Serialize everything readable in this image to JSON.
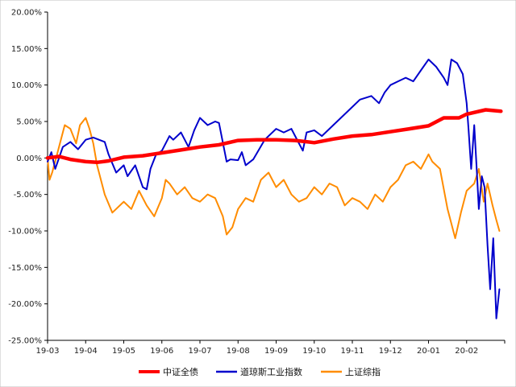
{
  "chart_data": {
    "type": "line",
    "title": "",
    "xlabel": "",
    "ylabel": "",
    "ylim": [
      -25,
      20
    ],
    "y_ticks": [
      "20.00%",
      "15.00%",
      "10.00%",
      "5.00%",
      "0.00%",
      "-5.00%",
      "-10.00%",
      "-15.00%",
      "-20.00%",
      "-25.00%"
    ],
    "y_tick_values": [
      20,
      15,
      10,
      5,
      0,
      -5,
      -10,
      -15,
      -20,
      -25
    ],
    "x_ticks": [
      "19-03",
      "19-04",
      "19-05",
      "19-06",
      "19-07",
      "19-08",
      "19-09",
      "19-10",
      "19-11",
      "19-12",
      "20-01",
      "20-02"
    ],
    "x_domain": [
      "19-03",
      "20-02 end"
    ],
    "grid": false,
    "legend_position": "bottom",
    "series": [
      {
        "name": "中证全债",
        "color": "#ff0000",
        "points": [
          [
            "19-03",
            0.0
          ],
          [
            "19-03.3",
            0.2
          ],
          [
            "19-03.6",
            -0.2
          ],
          [
            "19-04",
            -0.5
          ],
          [
            "19-04.3",
            -0.6
          ],
          [
            "19-04.6",
            -0.4
          ],
          [
            "19-05",
            0.1
          ],
          [
            "19-05.5",
            0.3
          ],
          [
            "19-06",
            0.7
          ],
          [
            "19-06.5",
            1.1
          ],
          [
            "19-07",
            1.5
          ],
          [
            "19-07.5",
            1.8
          ],
          [
            "19-08",
            2.4
          ],
          [
            "19-08.5",
            2.5
          ],
          [
            "19-09",
            2.5
          ],
          [
            "19-09.5",
            2.4
          ],
          [
            "19-10",
            2.1
          ],
          [
            "19-10.5",
            2.6
          ],
          [
            "19-11",
            3.0
          ],
          [
            "19-11.5",
            3.2
          ],
          [
            "19-12",
            3.6
          ],
          [
            "19-12.5",
            4.0
          ],
          [
            "20-01",
            4.4
          ],
          [
            "20-01.4",
            5.5
          ],
          [
            "20-01.8",
            5.5
          ],
          [
            "20-02",
            6.0
          ],
          [
            "20-02.5",
            6.6
          ],
          [
            "20-02.9",
            6.4
          ]
        ]
      },
      {
        "name": "道琼斯工业指数",
        "color": "#0000cc",
        "points": [
          [
            "19-03",
            -0.5
          ],
          [
            "19-03.1",
            0.8
          ],
          [
            "19-03.2",
            -1.5
          ],
          [
            "19-03.4",
            1.5
          ],
          [
            "19-03.6",
            2.2
          ],
          [
            "19-03.8",
            1.2
          ],
          [
            "19-04",
            2.5
          ],
          [
            "19-04.2",
            2.8
          ],
          [
            "19-04.5",
            2.2
          ],
          [
            "19-04.6",
            0.5
          ],
          [
            "19-04.8",
            -2.0
          ],
          [
            "19-05",
            -1.0
          ],
          [
            "19-05.1",
            -2.5
          ],
          [
            "19-05.3",
            -1.0
          ],
          [
            "19-05.5",
            -4.0
          ],
          [
            "19-05.6",
            -4.3
          ],
          [
            "19-05.7",
            -1.5
          ],
          [
            "19-05.85",
            0.5
          ],
          [
            "19-06",
            1.0
          ],
          [
            "19-06.2",
            3.0
          ],
          [
            "19-06.3",
            2.5
          ],
          [
            "19-06.5",
            3.5
          ],
          [
            "19-06.7",
            1.5
          ],
          [
            "19-06.85",
            3.8
          ],
          [
            "19-07",
            5.5
          ],
          [
            "19-07.2",
            4.5
          ],
          [
            "19-07.4",
            5.0
          ],
          [
            "19-07.5",
            4.8
          ],
          [
            "19-07.7",
            -0.5
          ],
          [
            "19-07.8",
            -0.2
          ],
          [
            "19-08",
            -0.3
          ],
          [
            "19-08.1",
            0.8
          ],
          [
            "19-08.2",
            -1.0
          ],
          [
            "19-08.4",
            -0.2
          ],
          [
            "19-08.7",
            2.5
          ],
          [
            "19-09",
            4.0
          ],
          [
            "19-09.2",
            3.5
          ],
          [
            "19-09.4",
            4.0
          ],
          [
            "19-09.5",
            3.0
          ],
          [
            "19-09.6",
            2.0
          ],
          [
            "19-09.7",
            1.0
          ],
          [
            "19-09.8",
            3.5
          ],
          [
            "19-10",
            3.8
          ],
          [
            "19-10.2",
            3.0
          ],
          [
            "19-10.5",
            4.5
          ],
          [
            "19-10.7",
            5.5
          ],
          [
            "19-11",
            7.0
          ],
          [
            "19-11.2",
            8.0
          ],
          [
            "19-11.5",
            8.5
          ],
          [
            "19-11.7",
            7.5
          ],
          [
            "19-11.85",
            9.0
          ],
          [
            "19-12",
            10.0
          ],
          [
            "19-12.2",
            10.5
          ],
          [
            "19-12.4",
            11.0
          ],
          [
            "19-12.6",
            10.5
          ],
          [
            "19-12.8",
            12.0
          ],
          [
            "20-01",
            13.5
          ],
          [
            "20-01.2",
            12.5
          ],
          [
            "20-01.4",
            11.0
          ],
          [
            "20-01.5",
            10.0
          ],
          [
            "20-01.6",
            13.5
          ],
          [
            "20-01.75",
            13.0
          ],
          [
            "20-01.9",
            11.5
          ],
          [
            "20-02",
            7.5
          ],
          [
            "20-02.05",
            4.0
          ],
          [
            "20-02.12",
            -1.5
          ],
          [
            "20-02.2",
            4.5
          ],
          [
            "20-02.27",
            -2.0
          ],
          [
            "20-02.32",
            -7.0
          ],
          [
            "20-02.4",
            -2.5
          ],
          [
            "20-02.47",
            -4.0
          ],
          [
            "20-02.55",
            -12.0
          ],
          [
            "20-02.62",
            -18.0
          ],
          [
            "20-02.7",
            -11.0
          ],
          [
            "20-02.78",
            -22.0
          ],
          [
            "20-02.86",
            -18.0
          ]
        ]
      },
      {
        "name": "上证综指",
        "color": "#ff8c00",
        "points": [
          [
            "19-03",
            0.0
          ],
          [
            "19-03.05",
            -3.0
          ],
          [
            "19-03.12",
            -2.0
          ],
          [
            "19-03.25",
            0.5
          ],
          [
            "19-03.45",
            4.5
          ],
          [
            "19-03.6",
            4.0
          ],
          [
            "19-03.75",
            2.0
          ],
          [
            "19-03.85",
            4.5
          ],
          [
            "19-04",
            5.5
          ],
          [
            "19-04.1",
            4.0
          ],
          [
            "19-04.2",
            2.0
          ],
          [
            "19-04.3",
            -1.0
          ],
          [
            "19-04.5",
            -5.0
          ],
          [
            "19-04.7",
            -7.5
          ],
          [
            "19-05",
            -6.0
          ],
          [
            "19-05.2",
            -7.0
          ],
          [
            "19-05.4",
            -4.5
          ],
          [
            "19-05.6",
            -6.5
          ],
          [
            "19-05.8",
            -8.0
          ],
          [
            "19-06",
            -5.5
          ],
          [
            "19-06.1",
            -3.0
          ],
          [
            "19-06.2",
            -3.5
          ],
          [
            "19-06.4",
            -5.0
          ],
          [
            "19-06.6",
            -4.0
          ],
          [
            "19-06.8",
            -5.5
          ],
          [
            "19-07",
            -6.0
          ],
          [
            "19-07.2",
            -5.0
          ],
          [
            "19-07.4",
            -5.5
          ],
          [
            "19-07.6",
            -8.0
          ],
          [
            "19-07.7",
            -10.5
          ],
          [
            "19-07.85",
            -9.5
          ],
          [
            "19-08",
            -7.0
          ],
          [
            "19-08.2",
            -5.5
          ],
          [
            "19-08.4",
            -6.0
          ],
          [
            "19-08.6",
            -3.0
          ],
          [
            "19-08.8",
            -2.0
          ],
          [
            "19-09",
            -4.0
          ],
          [
            "19-09.2",
            -3.0
          ],
          [
            "19-09.4",
            -5.0
          ],
          [
            "19-09.6",
            -6.0
          ],
          [
            "19-09.8",
            -5.5
          ],
          [
            "19-10",
            -4.0
          ],
          [
            "19-10.2",
            -5.0
          ],
          [
            "19-10.4",
            -3.5
          ],
          [
            "19-10.6",
            -4.0
          ],
          [
            "19-10.8",
            -6.5
          ],
          [
            "19-11",
            -5.5
          ],
          [
            "19-11.2",
            -6.0
          ],
          [
            "19-11.4",
            -7.0
          ],
          [
            "19-11.6",
            -5.0
          ],
          [
            "19-11.8",
            -6.0
          ],
          [
            "19-12",
            -4.0
          ],
          [
            "19-12.2",
            -3.0
          ],
          [
            "19-12.4",
            -1.0
          ],
          [
            "19-12.6",
            -0.5
          ],
          [
            "19-12.8",
            -1.5
          ],
          [
            "20-01",
            0.5
          ],
          [
            "20-01.1",
            -0.5
          ],
          [
            "20-01.3",
            -1.5
          ],
          [
            "20-01.5",
            -7.0
          ],
          [
            "20-01.7",
            -11.0
          ],
          [
            "20-01.85",
            -7.5
          ],
          [
            "20-02",
            -4.5
          ],
          [
            "20-02.2",
            -3.5
          ],
          [
            "20-02.32",
            -1.5
          ],
          [
            "20-02.45",
            -6.0
          ],
          [
            "20-02.55",
            -3.5
          ],
          [
            "20-02.68",
            -6.5
          ],
          [
            "20-02.78",
            -8.5
          ],
          [
            "20-02.86",
            -10.0
          ]
        ]
      }
    ]
  },
  "legend": [
    {
      "label": "中证全债",
      "color": "#ff0000"
    },
    {
      "label": "道琼斯工业指数",
      "color": "#0000cc"
    },
    {
      "label": "上证综指",
      "color": "#ff8c00"
    }
  ]
}
